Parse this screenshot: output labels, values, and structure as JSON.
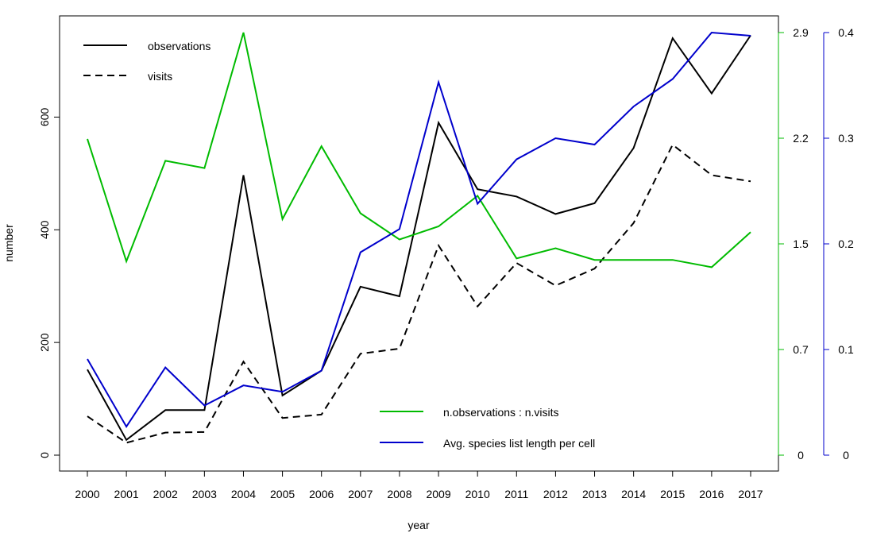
{
  "chart_data": {
    "type": "line",
    "xlabel": "year",
    "ylabel": "number",
    "x": [
      2000,
      2001,
      2002,
      2003,
      2004,
      2005,
      2006,
      2007,
      2008,
      2009,
      2010,
      2011,
      2012,
      2013,
      2014,
      2015,
      2016,
      2017
    ],
    "axes": {
      "left": {
        "ylim": [
          0,
          750
        ],
        "ticks": [
          "0",
          "200",
          "400",
          "600"
        ],
        "tick_values": [
          0,
          200,
          400,
          600
        ],
        "color": "#000000"
      },
      "right_green": {
        "ylim": [
          0,
          2.9
        ],
        "ticks": [
          "0",
          "0.7",
          "1.5",
          "2.2",
          "2.9"
        ],
        "tick_values": [
          0,
          0.725,
          1.45,
          2.175,
          2.9
        ],
        "color": "#00bb00"
      },
      "right_blue": {
        "ylim": [
          0,
          0.4
        ],
        "ticks": [
          "0",
          "0.1",
          "0.2",
          "0.3",
          "0.4"
        ],
        "tick_values": [
          0,
          0.1,
          0.2,
          0.3,
          0.4
        ],
        "color": "#0000cc"
      }
    },
    "series": [
      {
        "name": "observations",
        "axis": "left",
        "color": "#000000",
        "dash": "solid",
        "values": [
          152,
          27,
          80,
          80,
          497,
          106,
          150,
          299,
          282,
          590,
          472,
          459,
          428,
          447,
          545,
          740,
          642,
          745
        ]
      },
      {
        "name": "visits",
        "axis": "left",
        "color": "#000000",
        "dash": "dashed",
        "values": [
          69,
          22,
          40,
          41,
          166,
          66,
          72,
          180,
          189,
          372,
          264,
          341,
          301,
          331,
          412,
          551,
          497,
          486
        ]
      },
      {
        "name": "n.observations : n.visits",
        "axis": "right_green",
        "color": "#00bb00",
        "dash": "solid",
        "values": [
          2.17,
          1.33,
          2.02,
          1.97,
          2.9,
          1.62,
          2.12,
          1.66,
          1.48,
          1.57,
          1.78,
          1.35,
          1.42,
          1.34,
          1.34,
          1.34,
          1.29,
          1.53
        ]
      },
      {
        "name": "Avg. species list length per cell",
        "axis": "right_blue",
        "color": "#0000cc",
        "dash": "solid",
        "values": [
          0.091,
          0.027,
          0.083,
          0.047,
          0.066,
          0.06,
          0.08,
          0.192,
          0.214,
          0.353,
          0.238,
          0.28,
          0.3,
          0.294,
          0.33,
          0.356,
          0.4,
          0.397
        ]
      }
    ],
    "legend_top_left": [
      "observations",
      "visits"
    ],
    "legend_bottom_middle": [
      "n.observations : n.visits",
      "Avg. species list length per cell"
    ]
  }
}
